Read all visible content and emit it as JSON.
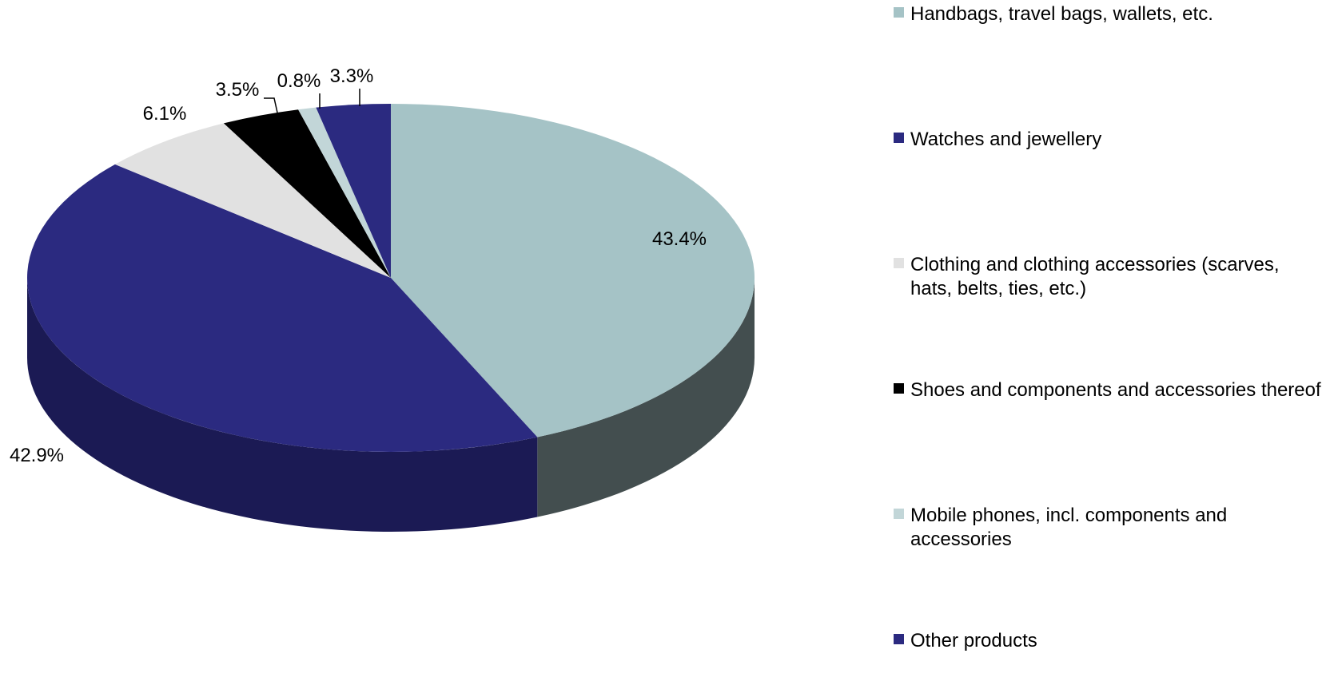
{
  "chart_data": {
    "type": "pie",
    "title": "",
    "style": "3d-pie",
    "legend_position": "right",
    "slices": [
      {
        "label": "Handbags, travel bags, wallets, etc.",
        "value": 43.4,
        "value_label": "43.4%",
        "color": "#A5C3C6",
        "side_color": "#434E4F"
      },
      {
        "label": "Watches and jewellery",
        "value": 42.9,
        "value_label": "42.9%",
        "color": "#2B2A80",
        "side_color": "#1B1A54"
      },
      {
        "label": "Clothing and clothing accessories (scarves, hats, belts, ties, etc.)",
        "value": 6.1,
        "value_label": "6.1%",
        "color": "#E1E1E1",
        "side_color": "#8A8A8A"
      },
      {
        "label": "Shoes and components and accessories thereof",
        "value": 3.5,
        "value_label": "3.5%",
        "color": "#000000",
        "side_color": "#000000"
      },
      {
        "label": "Mobile phones, incl. components and accessories",
        "value": 0.8,
        "value_label": "0.8%",
        "color": "#C2D6D8",
        "side_color": "#6E7A7B"
      },
      {
        "label": "Other products",
        "value": 3.3,
        "value_label": "3.3%",
        "color": "#2B2A80",
        "side_color": "#1B1A54"
      }
    ]
  }
}
